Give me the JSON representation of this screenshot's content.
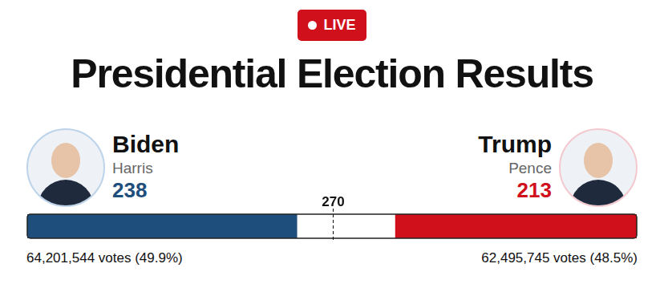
{
  "badge": "LIVE",
  "title": "Presidential Election Results",
  "chart_data": {
    "type": "bar",
    "orientation": "horizontal",
    "categories": [
      null
    ],
    "xlim": [
      0,
      538
    ],
    "threshold": 270,
    "tick_labels": false,
    "grid": false,
    "series": [
      {
        "name": "Biden",
        "running_mate": "Harris",
        "color": "#1d4e7c",
        "values": [
          238
        ],
        "votes_label": "64,201,544 votes (49.9%)"
      },
      {
        "name": "Trump",
        "running_mate": "Pence",
        "color": "#d0111b",
        "values": [
          213
        ],
        "votes_label": "62,495,745 votes (48.5%)"
      }
    ]
  }
}
